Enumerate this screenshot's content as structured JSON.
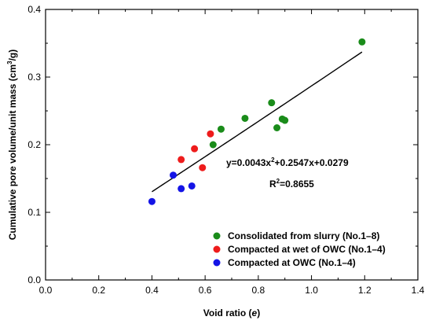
{
  "chart_data": {
    "type": "scatter",
    "xlabel_main": "Void ratio (",
    "xlabel_var": "e",
    "xlabel_end": ")",
    "ylabel_main": "Cumulative pore volume/unit mass (cm",
    "ylabel_sup": "3",
    "ylabel_end": "/g)",
    "xlim": [
      0.0,
      1.4
    ],
    "ylim": [
      0.0,
      0.4
    ],
    "x_ticks": [
      "0.0",
      "0.2",
      "0.4",
      "0.6",
      "0.8",
      "1.0",
      "1.2",
      "1.4"
    ],
    "y_ticks": [
      "0.0",
      "0.1",
      "0.2",
      "0.3",
      "0.4"
    ],
    "grid": false,
    "legend_position": "bottom-right",
    "series": [
      {
        "name": "Consolidated from slurry (No.1–8)",
        "color": "#1a8c1a",
        "x": [
          0.63,
          0.66,
          0.75,
          0.85,
          0.87,
          0.89,
          0.9,
          1.19
        ],
        "y": [
          0.2,
          0.223,
          0.239,
          0.262,
          0.225,
          0.238,
          0.236,
          0.352
        ]
      },
      {
        "name": "Compacted at wet of OWC (No.1–4)",
        "color": "#ee1c1c",
        "x": [
          0.51,
          0.56,
          0.59,
          0.62
        ],
        "y": [
          0.178,
          0.194,
          0.166,
          0.216
        ]
      },
      {
        "name": "Compacted at OWC (No.1–4)",
        "color": "#1414e6",
        "x": [
          0.4,
          0.48,
          0.51,
          0.55
        ],
        "y": [
          0.116,
          0.155,
          0.135,
          0.139
        ]
      }
    ],
    "fit": {
      "coefficients": [
        0.0043,
        0.2547,
        0.0279
      ],
      "x_range": [
        0.4,
        1.19
      ],
      "equation_prefix": "y=0.0043x",
      "equation_sup": "2",
      "equation_suffix": "+0.2547x+0.0279",
      "r2_prefix": "R",
      "r2_sup": "2",
      "r2_suffix": "=0.8655"
    }
  }
}
